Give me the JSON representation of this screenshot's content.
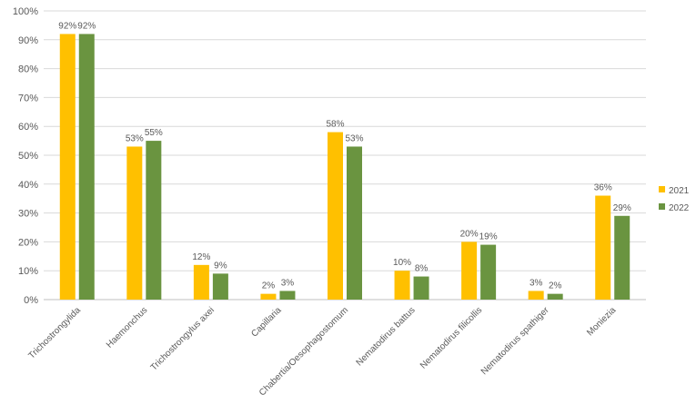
{
  "chart_data": {
    "type": "bar",
    "title": "",
    "xlabel": "",
    "ylabel": "",
    "ylim": [
      0,
      100
    ],
    "yticks": [
      0,
      10,
      20,
      30,
      40,
      50,
      60,
      70,
      80,
      90,
      100
    ],
    "y_tick_suffix": "%",
    "grid": true,
    "legend_position": "right",
    "categories": [
      "Trichostrongylida",
      "Haemonchus",
      "Trichostrongylus axei",
      "Capillaria",
      "Chabertia/Oesophagostomum",
      "Nematodirus battus",
      "Nematodirus filicollis",
      "Nematodirus spathiger",
      "Moniezia"
    ],
    "series": [
      {
        "name": "2021",
        "color": "#FFC000",
        "values": [
          92,
          53,
          12,
          2,
          58,
          10,
          20,
          3,
          36
        ],
        "labels": [
          "92%",
          "53%",
          "12%",
          "2%",
          "58%",
          "10%",
          "20%",
          "3%",
          "36%"
        ]
      },
      {
        "name": "2022",
        "color": "#6A9440",
        "values": [
          92,
          55,
          9,
          3,
          53,
          8,
          19,
          2,
          29
        ],
        "labels": [
          "92%",
          "55%",
          "9%",
          "3%",
          "53%",
          "8%",
          "19%",
          "2%",
          "29%"
        ]
      }
    ]
  }
}
